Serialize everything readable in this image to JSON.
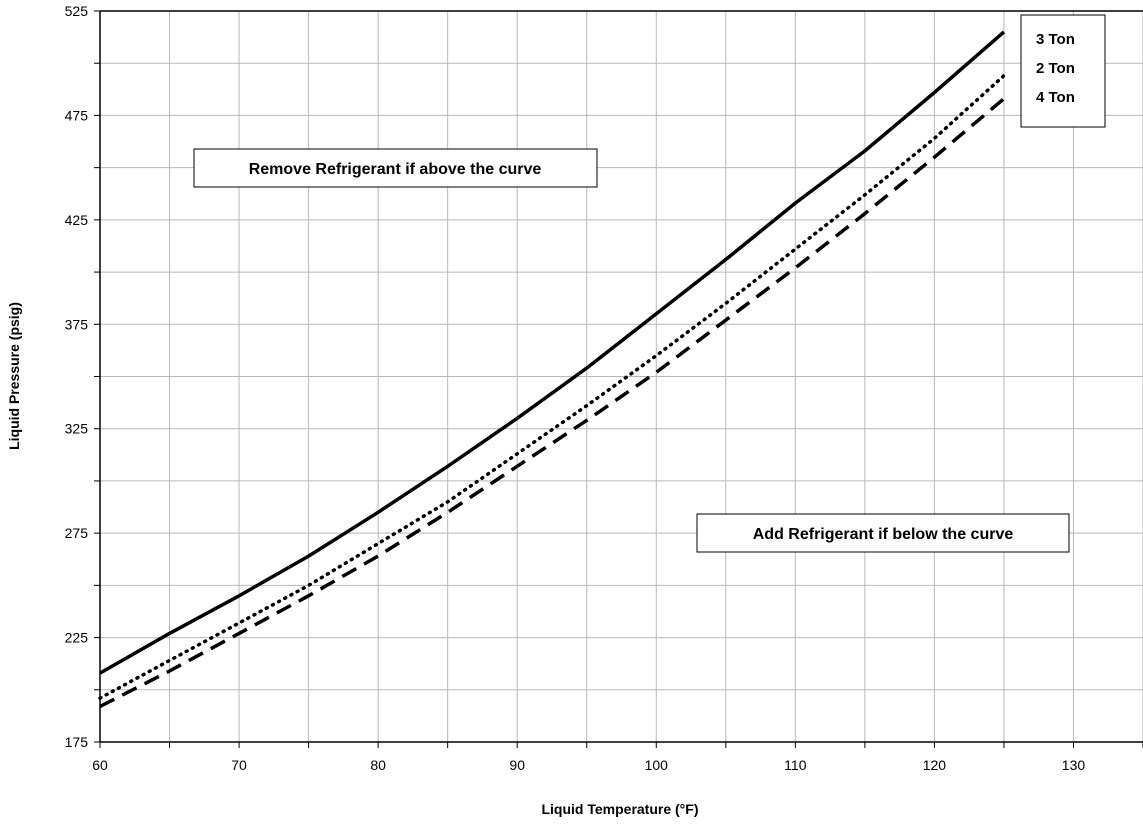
{
  "chart_data": {
    "type": "line",
    "xlabel": "Liquid Temperature (°F)",
    "ylabel": "Liquid Pressure (psig)",
    "xlim": [
      60,
      135
    ],
    "ylim": [
      175,
      525
    ],
    "xticks": [
      60,
      70,
      80,
      90,
      100,
      110,
      120,
      130
    ],
    "yticks": [
      175,
      225,
      275,
      325,
      375,
      425,
      475,
      525
    ],
    "grid": true,
    "legend_position": "top-right",
    "series": [
      {
        "name": "3 Ton",
        "style": "solid",
        "x": [
          60,
          65,
          70,
          75,
          80,
          85,
          90,
          95,
          100,
          105,
          110,
          115,
          120,
          125
        ],
        "y": [
          208,
          227,
          245,
          264,
          285,
          307,
          330,
          354,
          380,
          406,
          433,
          458,
          486,
          515
        ]
      },
      {
        "name": "2 Ton",
        "style": "dotted",
        "x": [
          60,
          65,
          70,
          75,
          80,
          85,
          90,
          95,
          100,
          105,
          110,
          115,
          120,
          125
        ],
        "y": [
          196,
          214,
          232,
          250,
          270,
          290,
          313,
          336,
          360,
          385,
          411,
          437,
          464,
          494
        ]
      },
      {
        "name": "4 Ton",
        "style": "dashed",
        "x": [
          60,
          65,
          70,
          75,
          80,
          85,
          90,
          95,
          100,
          105,
          110,
          115,
          120,
          125
        ],
        "y": [
          192,
          209,
          227,
          245,
          264,
          285,
          307,
          329,
          352,
          377,
          402,
          428,
          455,
          483
        ]
      }
    ],
    "annotations": [
      {
        "text": "Remove Refrigerant if above the curve"
      },
      {
        "text": "Add Refrigerant if below the curve"
      }
    ]
  }
}
